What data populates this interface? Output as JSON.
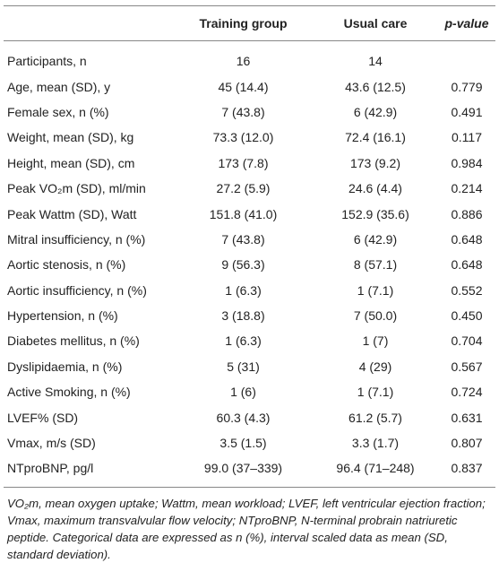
{
  "table": {
    "header": [
      "Training group",
      "Usual care",
      "p-value"
    ],
    "rows": [
      [
        "Participants, n",
        "16",
        "14",
        ""
      ],
      [
        "Age, mean (SD), y",
        "45 (14.4)",
        "43.6 (12.5)",
        "0.779"
      ],
      [
        "Female sex, n (%)",
        "7 (43.8)",
        "6 (42.9)",
        "0.491"
      ],
      [
        "Weight, mean (SD), kg",
        "73.3 (12.0)",
        "72.4 (16.1)",
        "0.117"
      ],
      [
        "Height, mean (SD), cm",
        "173 (7.8)",
        "173 (9.2)",
        "0.984"
      ],
      [
        "Peak VO₂m (SD), ml/min",
        "27.2 (5.9)",
        "24.6 (4.4)",
        "0.214"
      ],
      [
        "Peak Wattm (SD), Watt",
        "151.8 (41.0)",
        "152.9 (35.6)",
        "0.886"
      ],
      [
        "Mitral insufficiency, n (%)",
        "7 (43.8)",
        "6 (42.9)",
        "0.648"
      ],
      [
        "Aortic stenosis, n (%)",
        "9 (56.3)",
        "8 (57.1)",
        "0.648"
      ],
      [
        "Aortic insufficiency, n (%)",
        "1 (6.3)",
        "1 (7.1)",
        "0.552"
      ],
      [
        "Hypertension, n (%)",
        "3 (18.8)",
        "7 (50.0)",
        "0.450"
      ],
      [
        "Diabetes mellitus, n (%)",
        "1 (6.3)",
        "1 (7)",
        "0.704"
      ],
      [
        "Dyslipidaemia, n (%)",
        "5 (31)",
        "4 (29)",
        "0.567"
      ],
      [
        "Active Smoking, n (%)",
        "1 (6)",
        "1 (7.1)",
        "0.724"
      ],
      [
        "LVEF% (SD)",
        "60.3 (4.3)",
        "61.2 (5.7)",
        "0.631"
      ],
      [
        "Vmax, m/s (SD)",
        "3.5 (1.5)",
        "3.3 (1.7)",
        "0.807"
      ],
      [
        "NTproBNP, pg/l",
        "99.0 (37–339)",
        "96.4 (71–248)",
        "0.837"
      ]
    ],
    "footnote": "VO₂m, mean oxygen uptake; Wattm, mean workload; LVEF, left ventricular ejection fraction; Vmax, maximum transvalvular flow velocity; NTproBNP, N-terminal probrain natriuretic peptide. Categorical data are expressed as n (%), interval scaled data as mean (SD, standard deviation)."
  }
}
